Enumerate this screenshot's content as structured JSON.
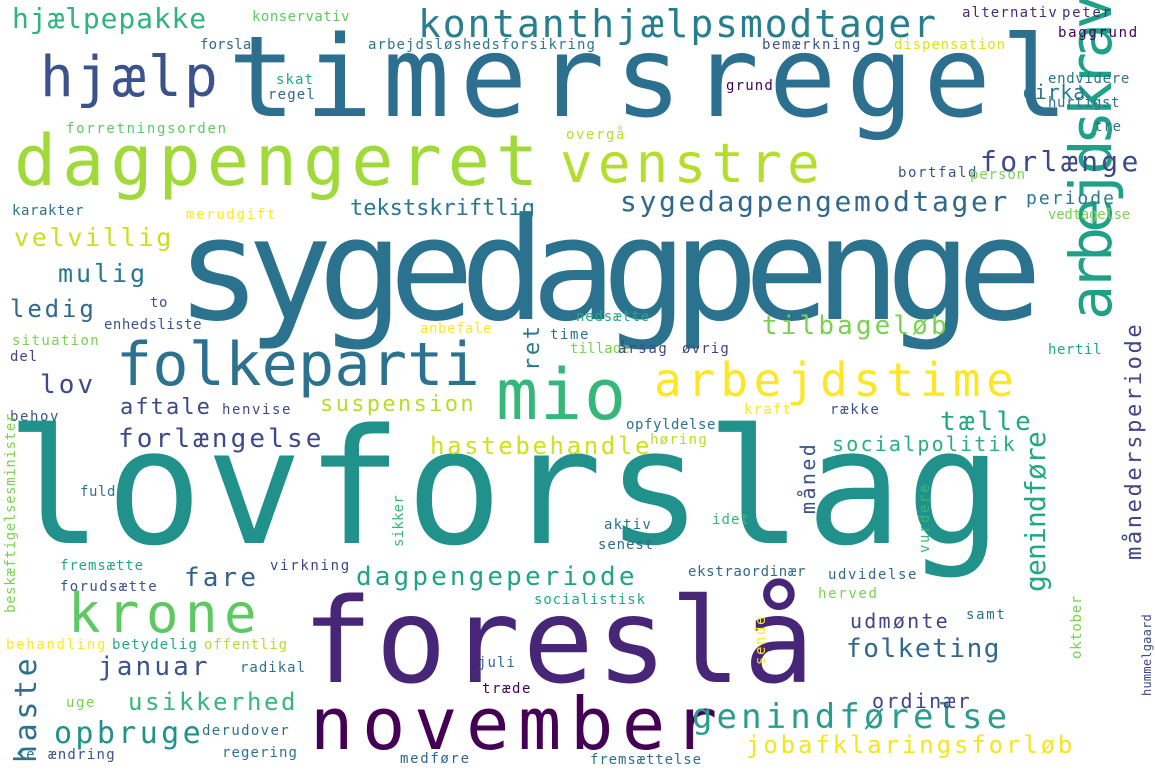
{
  "words": [
    {
      "id": "timersregel",
      "text": "timersregel",
      "color": "#2c6f8e"
    },
    {
      "id": "sygedagpenge",
      "text": "sygedagpenge",
      "color": "#2b728e"
    },
    {
      "id": "lovforslag",
      "text": "lovforslag",
      "color": "#21918c"
    },
    {
      "id": "foreslaa",
      "text": "foreslå",
      "color": "#482677"
    },
    {
      "id": "november",
      "text": "november",
      "color": "#440154"
    },
    {
      "id": "dagpengeret",
      "text": "dagpengeret",
      "color": "#a0da39"
    },
    {
      "id": "hjaelp",
      "text": "hjælp",
      "color": "#3b528b"
    },
    {
      "id": "kontanthjaelpsmodtager",
      "text": "kontanthjælpsmodtager",
      "color": "#277f8e"
    },
    {
      "id": "venstre",
      "text": "venstre",
      "color": "#b5de2b"
    },
    {
      "id": "folkeparti",
      "text": "folkeparti",
      "color": "#2c728e"
    },
    {
      "id": "mio",
      "text": "mio",
      "color": "#35b779"
    },
    {
      "id": "arbejdstime",
      "text": "arbejdstime",
      "color": "#fde725"
    },
    {
      "id": "arbejdskrav",
      "text": "arbejdskrav",
      "color": "#1fa187"
    },
    {
      "id": "krone",
      "text": "krone",
      "color": "#5ec962"
    },
    {
      "id": "hjaelpepakke",
      "text": "hjælpepakke",
      "color": "#2fb47c"
    },
    {
      "id": "forlaenge",
      "text": "forlænge",
      "color": "#3e4989"
    },
    {
      "id": "sygedagpengemodtager",
      "text": "sygedagpengemodtager",
      "color": "#31688e"
    },
    {
      "id": "tekstskriftlig",
      "text": "tekstskriftlig",
      "color": "#2a788e"
    },
    {
      "id": "velvillig",
      "text": "velvillig",
      "color": "#c8e020"
    },
    {
      "id": "mulig",
      "text": "mulig",
      "color": "#2a788e"
    },
    {
      "id": "ledig",
      "text": "ledig",
      "color": "#31688e"
    },
    {
      "id": "lov",
      "text": "lov",
      "color": "#3e4989"
    },
    {
      "id": "aftale",
      "text": "aftale",
      "color": "#3e4989"
    },
    {
      "id": "forlaengelse",
      "text": "forlængelse",
      "color": "#3e4989"
    },
    {
      "id": "fare",
      "text": "fare",
      "color": "#355f8d"
    },
    {
      "id": "tilbageloeb",
      "text": "tilbageløb",
      "color": "#7ad151"
    },
    {
      "id": "suspension",
      "text": "suspension",
      "color": "#b5de2b"
    },
    {
      "id": "taelle",
      "text": "tælle",
      "color": "#22a884"
    },
    {
      "id": "hastebehandle",
      "text": "hastebehandle",
      "color": "#d0e11c"
    },
    {
      "id": "socialpolitik",
      "text": "socialpolitik",
      "color": "#29af7f"
    },
    {
      "id": "dagpengeperiode",
      "text": "dagpengeperiode",
      "color": "#20a486"
    },
    {
      "id": "januar",
      "text": "januar",
      "color": "#3b528b"
    },
    {
      "id": "usikkerhed",
      "text": "usikkerhed",
      "color": "#35b779"
    },
    {
      "id": "opbruge",
      "text": "opbruge",
      "color": "#21918c"
    },
    {
      "id": "haste",
      "text": "haste",
      "color": "#2c728e"
    },
    {
      "id": "genindfoerelse",
      "text": "genindførelse",
      "color": "#2a9d8f"
    },
    {
      "id": "jobafklaringsforloeb",
      "text": "jobafklaringsforløb",
      "color": "#f4e61e"
    },
    {
      "id": "folketing",
      "text": "folketing",
      "color": "#31688e"
    },
    {
      "id": "udmoente",
      "text": "udmønte",
      "color": "#414487"
    },
    {
      "id": "ordinaer",
      "text": "ordinær",
      "color": "#414487"
    },
    {
      "id": "genindfoere",
      "text": "genindføre",
      "color": "#22a884"
    },
    {
      "id": "maanedersperiode",
      "text": "månedersperiode",
      "color": "#404688"
    },
    {
      "id": "maaned",
      "text": "måned",
      "color": "#3b528b"
    },
    {
      "id": "ret",
      "text": "ret",
      "color": "#2a788e"
    },
    {
      "id": "cirka",
      "text": "cirka",
      "color": "#2a788e"
    },
    {
      "id": "periode",
      "text": "periode",
      "color": "#2a788e"
    },
    {
      "id": "konservativ",
      "text": "konservativ",
      "color": "#5ec962"
    },
    {
      "id": "alternativ",
      "text": "alternativ",
      "color": "#472c7a"
    },
    {
      "id": "peter",
      "text": "peter",
      "color": "#472c7a"
    },
    {
      "id": "baggrund",
      "text": "baggrund",
      "color": "#440154"
    },
    {
      "id": "forslag",
      "text": "forslag",
      "color": "#31688e"
    },
    {
      "id": "arbejdsloeshedsforsikring",
      "text": "arbejdsløshedsforsikring",
      "color": "#2a788e"
    },
    {
      "id": "bemaerkning",
      "text": "bemærkning",
      "color": "#3b528b"
    },
    {
      "id": "dispensation",
      "text": "dispensation",
      "color": "#dde318"
    },
    {
      "id": "skat",
      "text": "skat",
      "color": "#22a884"
    },
    {
      "id": "regel",
      "text": "regel",
      "color": "#31688e"
    },
    {
      "id": "grund",
      "text": "grund",
      "color": "#440154"
    },
    {
      "id": "endvidere",
      "text": "endvidere",
      "color": "#2c728e"
    },
    {
      "id": "hurtigst",
      "text": "hurtigst",
      "color": "#2c728e"
    },
    {
      "id": "forretningsorden",
      "text": "forretningsorden",
      "color": "#5ec962"
    },
    {
      "id": "overgaa",
      "text": "overgå",
      "color": "#b5de2b"
    },
    {
      "id": "tre",
      "text": "tre",
      "color": "#2c728e"
    },
    {
      "id": "bortfald",
      "text": "bortfald",
      "color": "#3b528b"
    },
    {
      "id": "person",
      "text": "person",
      "color": "#7ad151"
    },
    {
      "id": "karakter",
      "text": "karakter",
      "color": "#2c728e"
    },
    {
      "id": "merudgift",
      "text": "merudgift",
      "color": "#fde725"
    },
    {
      "id": "vedtagelse",
      "text": "vedtagelse",
      "color": "#7ad151"
    },
    {
      "id": "to",
      "text": "to",
      "color": "#3b528b"
    },
    {
      "id": "enhedsliste",
      "text": "enhedsliste",
      "color": "#3b528b"
    },
    {
      "id": "situation",
      "text": "situation",
      "color": "#7ad151"
    },
    {
      "id": "del",
      "text": "del",
      "color": "#414487"
    },
    {
      "id": "anbefale",
      "text": "anbefale",
      "color": "#fde725"
    },
    {
      "id": "nedsaette",
      "text": "nedsætte",
      "color": "#22a884"
    },
    {
      "id": "time",
      "text": "time",
      "color": "#2c728e"
    },
    {
      "id": "tillade",
      "text": "tillade",
      "color": "#7ad151"
    },
    {
      "id": "aarsag",
      "text": "årsag",
      "color": "#3e4989"
    },
    {
      "id": "oevrig",
      "text": "øvrig",
      "color": "#414487"
    },
    {
      "id": "hertil",
      "text": "hertil",
      "color": "#22a884"
    },
    {
      "id": "behov",
      "text": "behov",
      "color": "#3b528b"
    },
    {
      "id": "henvise",
      "text": "henvise",
      "color": "#3e4989"
    },
    {
      "id": "kraft",
      "text": "kraft",
      "color": "#fde725"
    },
    {
      "id": "raekke",
      "text": "række",
      "color": "#3b528b"
    },
    {
      "id": "opfyldelse",
      "text": "opfyldelse",
      "color": "#2c728e"
    },
    {
      "id": "hoering",
      "text": "høring",
      "color": "#b5de2b"
    },
    {
      "id": "beskaeftigelsesminister",
      "text": "beskæftigelsesminister",
      "color": "#7ad151"
    },
    {
      "id": "fuld",
      "text": "fuld",
      "color": "#2c728e"
    },
    {
      "id": "sikker",
      "text": "sikker",
      "color": "#35b779"
    },
    {
      "id": "aktiv",
      "text": "aktiv",
      "color": "#2c728e"
    },
    {
      "id": "idet",
      "text": "idet",
      "color": "#35b779"
    },
    {
      "id": "senest",
      "text": "senest",
      "color": "#31688e"
    },
    {
      "id": "vurdere",
      "text": "vurdere",
      "color": "#35b779"
    },
    {
      "id": "fremsaette",
      "text": "fremsætte",
      "color": "#22a884"
    },
    {
      "id": "forudsaette",
      "text": "forudsætte",
      "color": "#3b528b"
    },
    {
      "id": "virkning",
      "text": "virkning",
      "color": "#414487"
    },
    {
      "id": "ekstraordinaer",
      "text": "ekstraordinær",
      "color": "#31688e"
    },
    {
      "id": "udvidelse",
      "text": "udvidelse",
      "color": "#31688e"
    },
    {
      "id": "herved",
      "text": "herved",
      "color": "#7ad151"
    },
    {
      "id": "socialistisk",
      "text": "socialistisk",
      "color": "#22a884"
    },
    {
      "id": "behandling",
      "text": "behandling",
      "color": "#fde725"
    },
    {
      "id": "betydelig",
      "text": "betydelig",
      "color": "#22a884"
    },
    {
      "id": "offentlig",
      "text": "offentlig",
      "color": "#b5de2b"
    },
    {
      "id": "samt",
      "text": "samt",
      "color": "#2c728e"
    },
    {
      "id": "radikal",
      "text": "radikal",
      "color": "#2c728e"
    },
    {
      "id": "sende",
      "text": "sende",
      "color": "#fde725"
    },
    {
      "id": "oktober",
      "text": "oktober",
      "color": "#7ad151"
    },
    {
      "id": "juli",
      "text": "juli",
      "color": "#31688e"
    },
    {
      "id": "traede",
      "text": "træde",
      "color": "#440154"
    },
    {
      "id": "hummelgaard",
      "text": "hummelgaard",
      "color": "#404688"
    },
    {
      "id": "uge",
      "text": "uge",
      "color": "#7ad151"
    },
    {
      "id": "derudover",
      "text": "derudover",
      "color": "#2c728e"
    },
    {
      "id": "regering",
      "text": "regering",
      "color": "#2c728e"
    },
    {
      "id": "se",
      "text": "se",
      "color": "#2c728e"
    },
    {
      "id": "aendring",
      "text": "ændring",
      "color": "#3b528b"
    },
    {
      "id": "medfoere",
      "text": "medføre",
      "color": "#31688e"
    },
    {
      "id": "fremsaettelse",
      "text": "fremsættelse",
      "color": "#2c728e"
    }
  ]
}
